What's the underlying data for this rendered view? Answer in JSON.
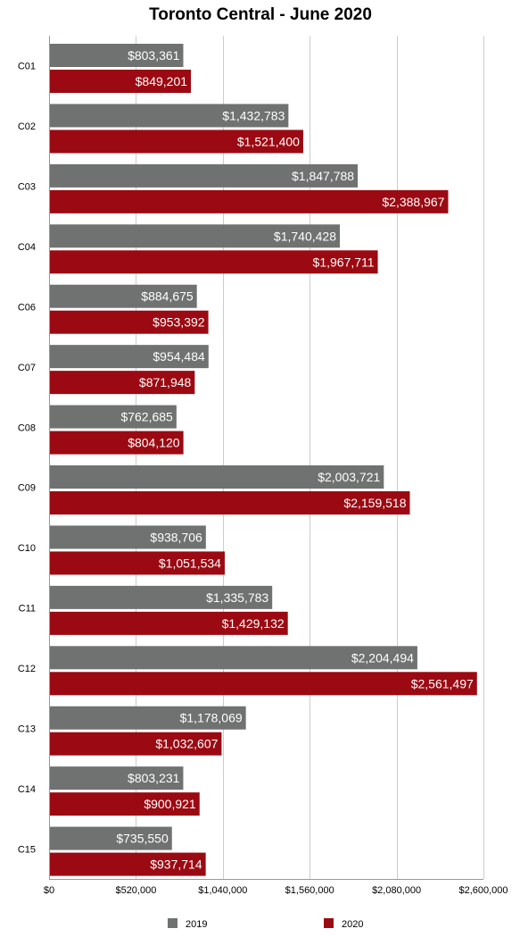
{
  "chart_data": {
    "type": "bar",
    "orientation": "horizontal",
    "title": "Toronto Central - June 2020",
    "xlabel": "",
    "ylabel": "",
    "xlim": [
      0,
      2600000
    ],
    "ticks": [
      "$0",
      "$520,000",
      "$1,040,000",
      "$1,560,000",
      "$2,080,000",
      "$2,600,000"
    ],
    "tick_values": [
      0,
      520000,
      1040000,
      1560000,
      2080000,
      2600000
    ],
    "grid": true,
    "legend_position": "bottom",
    "categories": [
      "C01",
      "C02",
      "C03",
      "C04",
      "C06",
      "C07",
      "C08",
      "C09",
      "C10",
      "C11",
      "C12",
      "C13",
      "C14",
      "C15"
    ],
    "series": [
      {
        "name": "2019",
        "color": "#6f7270",
        "values": [
          803361,
          1432783,
          1847788,
          1740428,
          884675,
          954484,
          762685,
          2003721,
          938706,
          1335783,
          2204494,
          1178069,
          803231,
          735550
        ],
        "labels": [
          "$803,361",
          "$1,432,783",
          "$1,847,788",
          "$1,740,428",
          "$884,675",
          "$954,484",
          "$762,685",
          "$2,003,721",
          "$938,706",
          "$1,335,783",
          "$2,204,494",
          "$1,178,069",
          "$803,231",
          "$735,550"
        ]
      },
      {
        "name": "2020",
        "color": "#9b0a12",
        "values": [
          849201,
          1521400,
          2388967,
          1967711,
          953392,
          871948,
          804120,
          2159518,
          1051534,
          1429132,
          2561497,
          1032607,
          900921,
          937714
        ],
        "labels": [
          "$849,201",
          "$1,521,400",
          "$2,388,967",
          "$1,967,711",
          "$953,392",
          "$871,948",
          "$804,120",
          "$2,159,518",
          "$1,051,534",
          "$1,429,132",
          "$2,561,497",
          "$1,032,607",
          "$900,921",
          "$937,714"
        ]
      }
    ]
  }
}
